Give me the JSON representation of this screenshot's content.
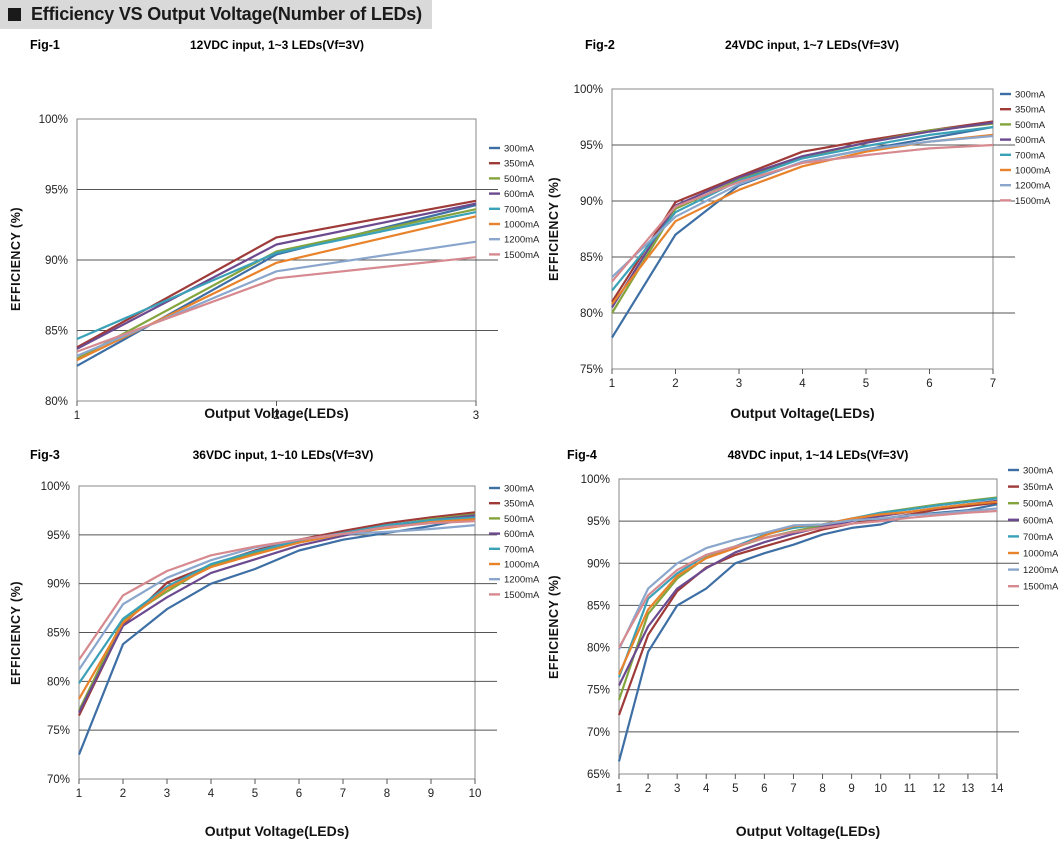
{
  "header": {
    "title": "Efficiency VS Output Voltage(Number of LEDs)"
  },
  "colors": {
    "300mA": "#3d6fa5",
    "350mA": "#9e3a38",
    "500mA": "#84a43d",
    "600mA": "#6c4a8f",
    "700mA": "#3aa1b8",
    "1000mA": "#e9832b",
    "1200mA": "#8aa6cc",
    "1500mA": "#d68a8f"
  },
  "chart_data": [
    {
      "fig": "Fig-1",
      "type": "line",
      "title": "12VDC input, 1~3 LEDs(Vf=3V)",
      "xlabel": "Output Voltage(LEDs)",
      "ylabel": "EFFICIENCY (%)",
      "x": [
        1,
        2,
        3
      ],
      "xticks": [
        "1",
        "2",
        "3"
      ],
      "ylim": [
        80,
        100
      ],
      "yticks": [
        "80%",
        "85%",
        "90%",
        "95%",
        "100%"
      ],
      "legend": "right",
      "series": [
        {
          "name": "300mA",
          "values": [
            82.5,
            90.4,
            93.9
          ]
        },
        {
          "name": "350mA",
          "values": [
            83.8,
            91.6,
            94.2
          ]
        },
        {
          "name": "500mA",
          "values": [
            83.0,
            90.6,
            93.6
          ]
        },
        {
          "name": "600mA",
          "values": [
            83.7,
            91.1,
            94.0
          ]
        },
        {
          "name": "700mA",
          "values": [
            84.4,
            90.5,
            93.4
          ]
        },
        {
          "name": "1000mA",
          "values": [
            82.9,
            89.8,
            93.1
          ]
        },
        {
          "name": "1200mA",
          "values": [
            83.2,
            89.2,
            91.3
          ]
        },
        {
          "name": "1500mA",
          "values": [
            83.5,
            88.7,
            90.2
          ]
        }
      ]
    },
    {
      "fig": "Fig-2",
      "type": "line",
      "title": "24VDC input, 1~7 LEDs(Vf=3V)",
      "xlabel": "Output Voltage(LEDs)",
      "ylabel": "EFFICIENCY (%)",
      "x": [
        1,
        2,
        3,
        4,
        5,
        6,
        7
      ],
      "xticks": [
        "1",
        "2",
        "3",
        "4",
        "5",
        "6",
        "7"
      ],
      "ylim": [
        75,
        100
      ],
      "yticks": [
        "75%",
        "80%",
        "85%",
        "90%",
        "95%",
        "100%"
      ],
      "legend": "right",
      "series": [
        {
          "name": "300mA",
          "values": [
            77.8,
            87.0,
            91.4,
            93.5,
            94.6,
            95.6,
            96.6
          ]
        },
        {
          "name": "350mA",
          "values": [
            81.0,
            89.9,
            92.2,
            94.4,
            95.4,
            96.3,
            97.1
          ]
        },
        {
          "name": "500mA",
          "values": [
            80.0,
            89.3,
            91.9,
            93.9,
            95.2,
            96.3,
            96.9
          ]
        },
        {
          "name": "600mA",
          "values": [
            80.5,
            89.6,
            92.1,
            94.0,
            95.2,
            96.2,
            97.0
          ]
        },
        {
          "name": "700mA",
          "values": [
            82.0,
            89.0,
            91.8,
            93.8,
            94.9,
            95.9,
            96.6
          ]
        },
        {
          "name": "1000mA",
          "values": [
            80.8,
            88.2,
            91.0,
            93.1,
            94.4,
            95.3,
            95.9
          ]
        },
        {
          "name": "1200mA",
          "values": [
            83.2,
            88.6,
            91.5,
            93.5,
            94.6,
            95.3,
            95.8
          ]
        },
        {
          "name": "1500mA",
          "values": [
            82.8,
            89.5,
            91.7,
            93.4,
            94.1,
            94.7,
            95.0
          ]
        }
      ]
    },
    {
      "fig": "Fig-3",
      "type": "line",
      "title": "36VDC input, 1~10 LEDs(Vf=3V)",
      "xlabel": "Output Voltage(LEDs)",
      "ylabel": "EFFICIENCY (%)",
      "x": [
        1,
        2,
        3,
        4,
        5,
        6,
        7,
        8,
        9,
        10
      ],
      "xticks": [
        "1",
        "2",
        "3",
        "4",
        "5",
        "6",
        "7",
        "8",
        "9",
        "10"
      ],
      "ylim": [
        70,
        100
      ],
      "yticks": [
        "70%",
        "75%",
        "80%",
        "85%",
        "90%",
        "95%",
        "100%"
      ],
      "legend": "right",
      "series": [
        {
          "name": "300mA",
          "values": [
            72.5,
            83.8,
            87.4,
            90.0,
            91.5,
            93.4,
            94.5,
            95.2,
            95.9,
            96.8
          ]
        },
        {
          "name": "350mA",
          "values": [
            76.5,
            85.8,
            90.1,
            91.9,
            93.4,
            94.5,
            95.4,
            96.2,
            96.8,
            97.3
          ]
        },
        {
          "name": "500mA",
          "values": [
            77.0,
            86.3,
            89.2,
            91.9,
            93.1,
            94.2,
            95.1,
            95.9,
            96.6,
            97.1
          ]
        },
        {
          "name": "600mA",
          "values": [
            76.8,
            85.7,
            88.6,
            91.1,
            92.5,
            93.9,
            94.9,
            95.8,
            96.5,
            97.0
          ]
        },
        {
          "name": "700mA",
          "values": [
            79.8,
            86.4,
            89.7,
            92.0,
            93.3,
            94.4,
            95.2,
            96.0,
            96.5,
            96.8
          ]
        },
        {
          "name": "1000mA",
          "values": [
            78.2,
            86.0,
            89.5,
            91.7,
            93.0,
            94.2,
            95.1,
            95.7,
            96.3,
            96.6
          ]
        },
        {
          "name": "1200mA",
          "values": [
            81.2,
            87.9,
            90.6,
            92.4,
            93.7,
            94.5,
            95.1,
            95.3,
            95.6,
            96.0
          ]
        },
        {
          "name": "1500mA",
          "values": [
            82.2,
            88.8,
            91.3,
            92.9,
            93.8,
            94.5,
            95.1,
            95.8,
            96.2,
            96.4
          ]
        }
      ]
    },
    {
      "fig": "Fig-4",
      "type": "line",
      "title": "48VDC input, 1~14 LEDs(Vf=3V)",
      "xlabel": "Output Voltage(LEDs)",
      "ylabel": "EFFICIENCY (%)",
      "x": [
        1,
        2,
        3,
        4,
        5,
        6,
        7,
        8,
        9,
        10,
        11,
        12,
        13,
        14
      ],
      "xticks": [
        "1",
        "2",
        "3",
        "4",
        "5",
        "6",
        "7",
        "8",
        "9",
        "10",
        "11",
        "12",
        "13",
        "14"
      ],
      "ylim": [
        65,
        100
      ],
      "yticks": [
        "65%",
        "70%",
        "75%",
        "80%",
        "85%",
        "90%",
        "95%",
        "100%"
      ],
      "legend": "right",
      "series": [
        {
          "name": "300mA",
          "values": [
            66.5,
            79.5,
            85.0,
            87.0,
            90.0,
            91.2,
            92.2,
            93.4,
            94.2,
            94.6,
            95.7,
            96.0,
            96.3,
            97.0
          ]
        },
        {
          "name": "350mA",
          "values": [
            72.0,
            81.5,
            86.7,
            89.5,
            91.0,
            92.0,
            93.0,
            94.0,
            94.7,
            95.2,
            95.8,
            96.4,
            96.8,
            97.2
          ]
        },
        {
          "name": "500mA",
          "values": [
            73.8,
            84.0,
            88.2,
            90.7,
            91.9,
            93.0,
            93.8,
            94.5,
            95.2,
            96.0,
            96.5,
            97.0,
            97.4,
            97.8
          ]
        },
        {
          "name": "600mA",
          "values": [
            75.5,
            82.5,
            87.0,
            89.4,
            91.3,
            92.5,
            93.5,
            94.3,
            95.0,
            95.6,
            96.1,
            96.6,
            97.0,
            97.4
          ]
        },
        {
          "name": "700mA",
          "values": [
            76.5,
            85.8,
            88.8,
            91.0,
            92.0,
            93.4,
            94.2,
            94.6,
            95.3,
            96.0,
            96.4,
            96.9,
            97.3,
            97.7
          ]
        },
        {
          "name": "1000mA",
          "values": [
            76.8,
            84.5,
            88.5,
            90.6,
            91.8,
            93.3,
            94.4,
            94.6,
            95.3,
            95.8,
            96.1,
            96.6,
            97.0,
            97.3
          ]
        },
        {
          "name": "1200mA",
          "values": [
            79.8,
            87.0,
            90.0,
            91.8,
            92.8,
            93.6,
            94.5,
            94.6,
            95.1,
            95.3,
            95.7,
            95.9,
            96.2,
            96.5
          ]
        },
        {
          "name": "1500mA",
          "values": [
            80.0,
            86.2,
            89.2,
            91.0,
            92.0,
            93.0,
            93.7,
            94.2,
            94.7,
            95.0,
            95.4,
            95.7,
            96.0,
            96.2
          ]
        }
      ]
    }
  ]
}
